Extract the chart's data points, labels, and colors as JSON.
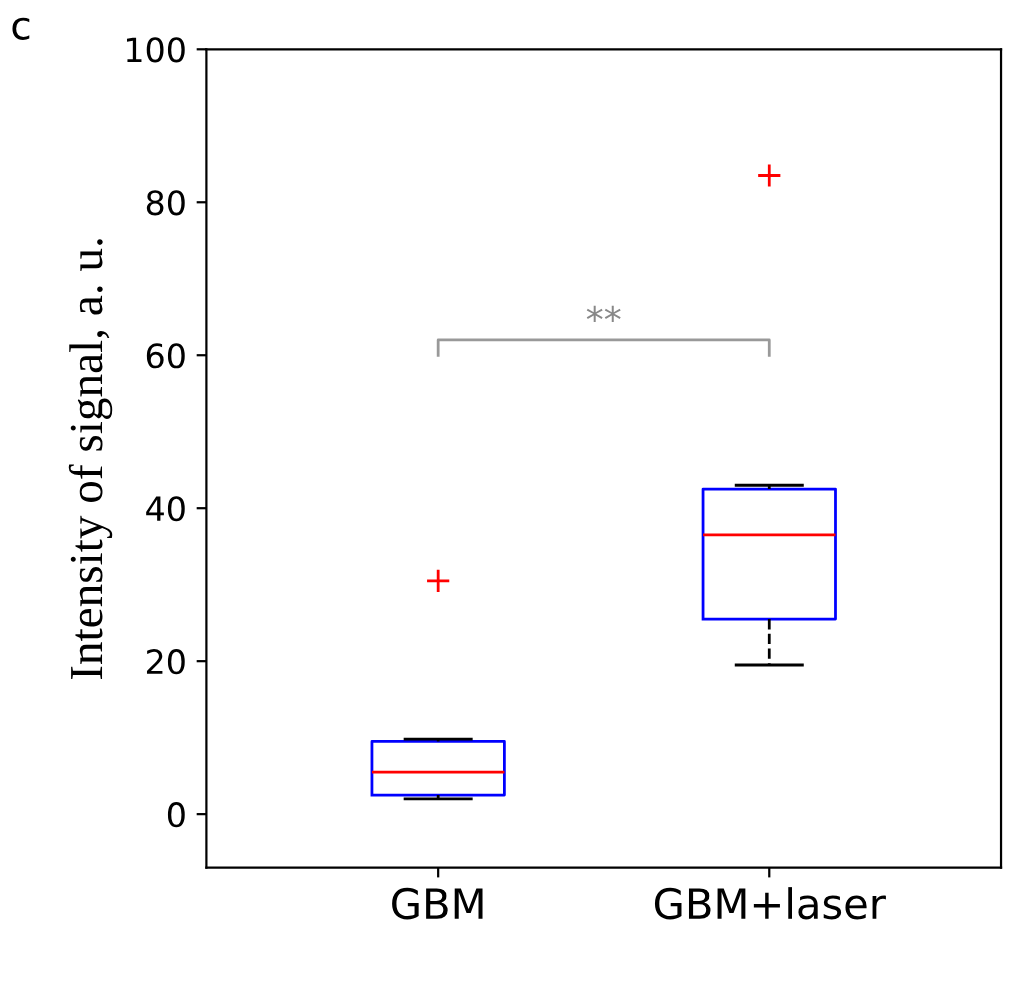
{
  "chart_data": {
    "type": "box",
    "ylabel": "Intensity of signal, a. u.",
    "categories": [
      "GBM",
      "GBM+laser"
    ],
    "boxes": [
      {
        "low": 2,
        "q1": 2.5,
        "median": 5.5,
        "q3": 9.5,
        "high": 9.8,
        "outliers": [
          30.5
        ]
      },
      {
        "low": 19.5,
        "q1": 25.5,
        "median": 36.5,
        "q3": 42.5,
        "high": 43,
        "outliers": [
          83.5
        ]
      }
    ],
    "color": "#0000ff",
    "ylim": [
      -7,
      100
    ],
    "yticks": [
      0,
      20,
      40,
      60,
      80,
      100
    ],
    "grid": false,
    "annotations": [
      "**",
      "c"
    ]
  }
}
